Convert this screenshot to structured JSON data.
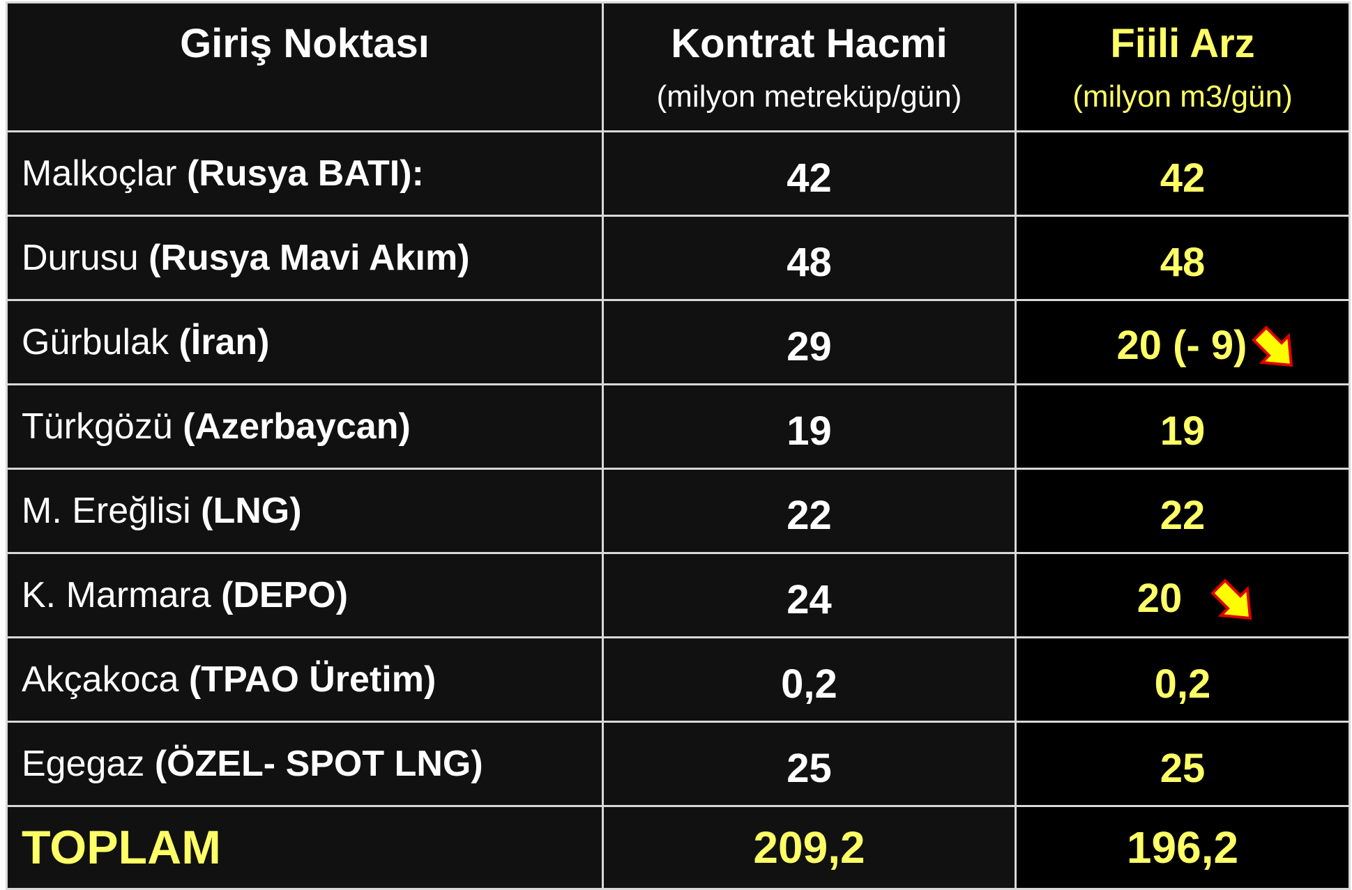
{
  "header": [
    {
      "title": "Giriş Noktası"
    },
    {
      "title": "Kontrat Hacmi",
      "subtitle": "(milyon metreküp/gün)"
    },
    {
      "title": "Fiili Arz",
      "subtitle": "(milyon m3/gün)"
    }
  ],
  "rows": [
    {
      "name": "Malkoçlar",
      "source": "(Rusya BATI):",
      "contract": "42",
      "actual": "42"
    },
    {
      "name": "Durusu",
      "source": "(Rusya Mavi Akım)",
      "contract": "48",
      "actual": "48"
    },
    {
      "name": "Gürbulak",
      "source": "(İran)",
      "contract": "29",
      "actual": "20 (- 9)"
    },
    {
      "name": "Türkgözü",
      "source": "(Azerbaycan)",
      "contract": "19",
      "actual": "19"
    },
    {
      "name": "M. Ereğlisi",
      "source": "(LNG)",
      "contract": "22",
      "actual": "22"
    },
    {
      "name": "K. Marmara",
      "source": "(DEPO)",
      "contract": "24",
      "actual": "20"
    },
    {
      "name": "Akçakoca",
      "source": "(TPAO Üretim)",
      "contract": "0,2",
      "actual": "0,2"
    },
    {
      "name": "Egegaz",
      "source": "(ÖZEL- SPOT LNG)",
      "contract": "25",
      "actual": "25"
    }
  ],
  "total": {
    "label": "TOPLAM",
    "contract": "209,2",
    "actual": "196,2"
  }
}
